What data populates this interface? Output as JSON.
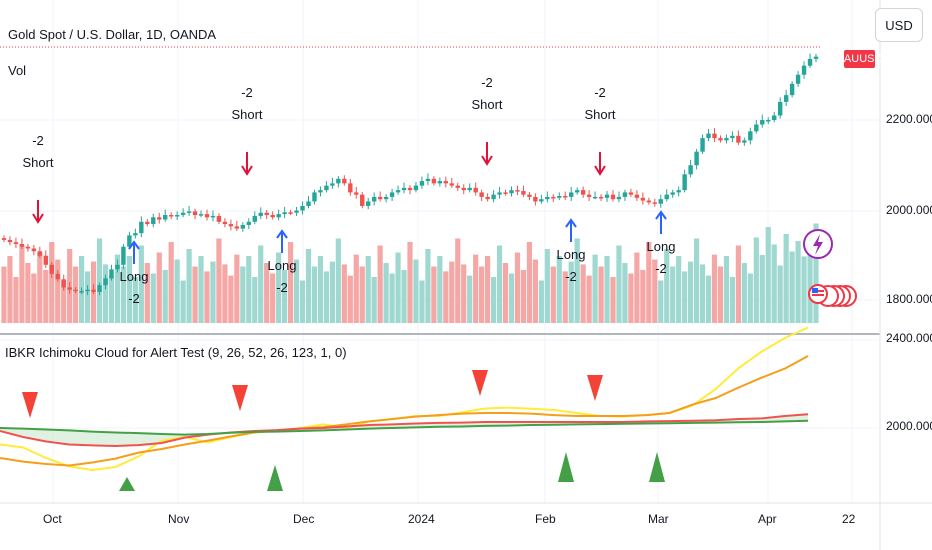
{
  "header": {
    "title": "Gold Spot / U.S. Dollar, 1D, OANDA",
    "volume_label": "Vol",
    "indicator_title": "IBKR Ichimoku  Cloud for Alert Test (9, 26, 52, 26, 123, 1, 0)",
    "currency_button": "USD",
    "symbol_badge": "XAUUSD"
  },
  "colors": {
    "up": "#26a69a",
    "down": "#ef5350",
    "vol_up": "#9fd8d0",
    "vol_down": "#f4a7a5",
    "short_arrow": "#e0123a",
    "long_arrow": "#2962ff",
    "tenkan": "#ffeb3b",
    "kijun": "#f59e1b",
    "span_a": "#ef5350",
    "span_b": "#43a047",
    "tri_down": "#f44336",
    "tri_up": "#43a047"
  },
  "chart_data": [
    {
      "type": "candlestick",
      "title": "Gold Spot / U.S. Dollar, 1D, OANDA",
      "y_ticks": [
        "2200.000",
        "2000.000",
        "1800.000"
      ],
      "x_ticks": [
        "Oct",
        "Nov",
        "Dec",
        "2024",
        "Feb",
        "Mar",
        "Apr",
        "22"
      ],
      "ylim": [
        1780,
        2340
      ],
      "close_series": [
        1935,
        1930,
        1926,
        1920,
        1916,
        1910,
        1900,
        1880,
        1860,
        1848,
        1830,
        1825,
        1822,
        1822,
        1825,
        1820,
        1835,
        1850,
        1870,
        1880,
        1920,
        1945,
        1950,
        1975,
        1970,
        1985,
        1980,
        1990,
        1988,
        1990,
        1995,
        1998,
        1990,
        1992,
        1985,
        1988,
        1975,
        1970,
        1965,
        1960,
        1968,
        1975,
        1988,
        1995,
        1990,
        1985,
        1992,
        1996,
        1995,
        2000,
        2010,
        2020,
        2040,
        2045,
        2055,
        2060,
        2070,
        2060,
        2040,
        2035,
        2010,
        2020,
        2030,
        2025,
        2030,
        2040,
        2045,
        2050,
        2045,
        2055,
        2065,
        2070,
        2060,
        2065,
        2060,
        2055,
        2050,
        2045,
        2050,
        2040,
        2030,
        2025,
        2035,
        2040,
        2038,
        2045,
        2043,
        2035,
        2030,
        2020,
        2025,
        2030,
        2028,
        2032,
        2030,
        2040,
        2045,
        2035,
        2030,
        2030,
        2028,
        2035,
        2025,
        2030,
        2040,
        2035,
        2028,
        2022,
        2018,
        2015,
        2025,
        2035,
        2040,
        2045,
        2080,
        2100,
        2130,
        2160,
        2170,
        2160,
        2155,
        2160,
        2165,
        2150,
        2155,
        2175,
        2190,
        2200,
        2200,
        2210,
        2240,
        2255,
        2280,
        2300,
        2320,
        2335,
        2340
      ],
      "volume_label": "Vol",
      "annotations": [
        {
          "signal": "Short",
          "count": "-2"
        },
        {
          "signal": "Short",
          "count": "-2"
        },
        {
          "signal": "Short",
          "count": "-2"
        },
        {
          "signal": "Short",
          "count": "-2"
        },
        {
          "signal": "Long",
          "count": "-2"
        },
        {
          "signal": "Long",
          "count": "-2"
        },
        {
          "signal": "Long",
          "count": "-2"
        },
        {
          "signal": "Long",
          "count": "-2"
        }
      ]
    },
    {
      "type": "line",
      "title": "IBKR Ichimoku  Cloud for Alert Test (9, 26, 52, 26, 123, 1, 0)",
      "y_ticks": [
        "2400.000",
        "2000.000"
      ],
      "ylim": [
        1880,
        2420
      ],
      "series": [
        {
          "values": [
            1945,
            1935,
            1900,
            1872,
            1860,
            1870,
            1905,
            1958,
            1970,
            1952,
            1970,
            1985,
            1990,
            2000,
            2012,
            2000,
            2022,
            2030,
            2040,
            2040,
            2052,
            2065,
            2068,
            2064,
            2060,
            2050,
            2040,
            2038,
            2043,
            2050,
            2075,
            2130,
            2200,
            2255,
            2300,
            2335
          ]
        },
        {
          "values": [
            1900,
            1888,
            1880,
            1875,
            1885,
            1898,
            1918,
            1930,
            1945,
            1958,
            1972,
            1985,
            1992,
            1998,
            2003,
            2012,
            2022,
            2030,
            2038,
            2043,
            2048,
            2050,
            2050,
            2048,
            2043,
            2040,
            2040,
            2040,
            2043,
            2050,
            2078,
            2100,
            2135,
            2168,
            2198,
            2240
          ]
        },
        {
          "values": [
            1990,
            1970,
            1955,
            1945,
            1942,
            1940,
            1943,
            1950,
            1968,
            1978,
            1985,
            1990,
            1993,
            1998,
            2000,
            2005,
            2010,
            2012,
            2015,
            2017,
            2018,
            2020,
            2020,
            2020,
            2020,
            2020,
            2020,
            2020,
            2022,
            2023,
            2024,
            2026,
            2030,
            2032,
            2040,
            2046
          ]
        },
        {
          "values": [
            2000,
            1998,
            1995,
            1992,
            1988,
            1985,
            1983,
            1980,
            1978,
            1980,
            1984,
            1987,
            1988,
            1990,
            1992,
            1995,
            1998,
            2000,
            2002,
            2004,
            2005,
            2007,
            2008,
            2010,
            2011,
            2012,
            2013,
            2014,
            2015,
            2016,
            2017,
            2018,
            2019,
            2020,
            2022,
            2024
          ]
        }
      ]
    }
  ]
}
